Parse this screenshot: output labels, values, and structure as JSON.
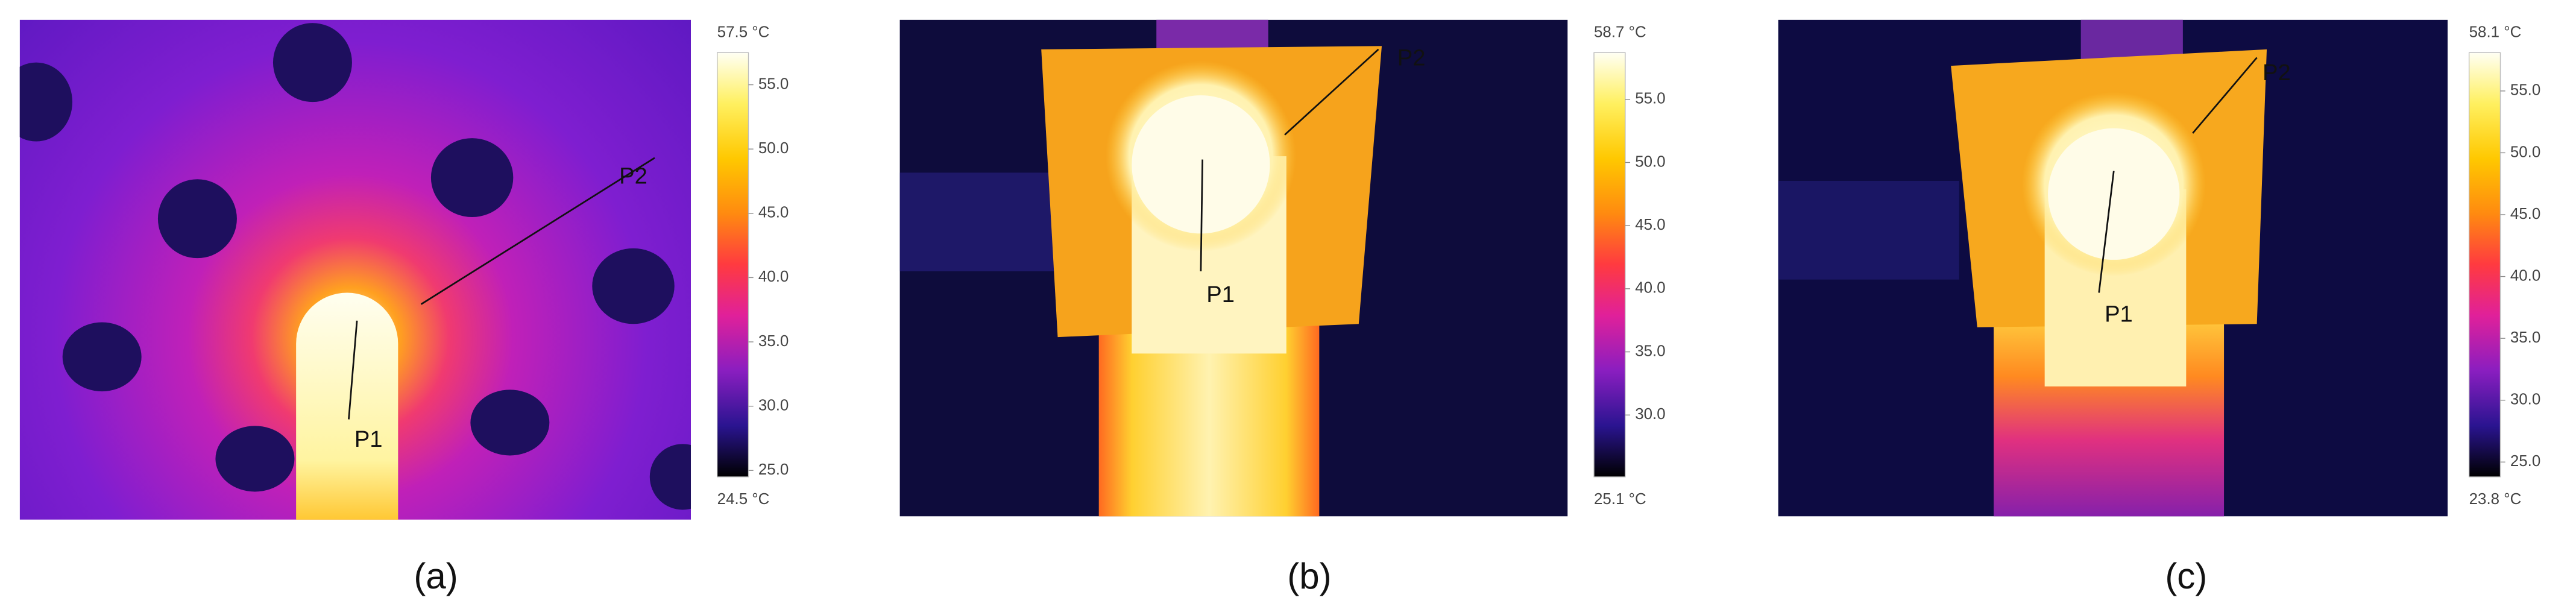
{
  "panels": [
    {
      "caption": "(a)",
      "image": {
        "labels": [
          "P1",
          "P2"
        ]
      },
      "colorbar": {
        "max": {
          "value": 57.5,
          "label": "57.5 °C"
        },
        "min": {
          "value": 24.5,
          "label": "24.5 °C"
        },
        "ticks": [
          {
            "value": 55,
            "label": "55.0"
          },
          {
            "value": 50,
            "label": "50.0"
          },
          {
            "value": 45,
            "label": "45.0"
          },
          {
            "value": 40,
            "label": "40.0"
          },
          {
            "value": 35,
            "label": "35.0"
          },
          {
            "value": 30,
            "label": "30.0"
          },
          {
            "value": 25,
            "label": "25.0"
          }
        ]
      }
    },
    {
      "caption": "(b)",
      "image": {
        "labels": [
          "P1",
          "P2"
        ]
      },
      "colorbar": {
        "max": {
          "value": 58.7,
          "label": "58.7 °C"
        },
        "min": {
          "value": 25.1,
          "label": "25.1 °C"
        },
        "ticks": [
          {
            "value": 55,
            "label": "55.0"
          },
          {
            "value": 50,
            "label": "50.0"
          },
          {
            "value": 45,
            "label": "45.0"
          },
          {
            "value": 40,
            "label": "40.0"
          },
          {
            "value": 35,
            "label": "35.0"
          },
          {
            "value": 30,
            "label": "30.0"
          }
        ]
      }
    },
    {
      "caption": "(c)",
      "image": {
        "labels": [
          "P1",
          "P2"
        ]
      },
      "colorbar": {
        "max": {
          "value": 58.1,
          "label": "58.1 °C"
        },
        "min": {
          "value": 23.8,
          "label": "23.8 °C"
        },
        "ticks": [
          {
            "value": 55,
            "label": "55.0"
          },
          {
            "value": 50,
            "label": "50.0"
          },
          {
            "value": 45,
            "label": "45.0"
          },
          {
            "value": 40,
            "label": "40.0"
          },
          {
            "value": 35,
            "label": "35.0"
          },
          {
            "value": 30,
            "label": "30.0"
          },
          {
            "value": 25,
            "label": "25.0"
          }
        ]
      }
    }
  ]
}
